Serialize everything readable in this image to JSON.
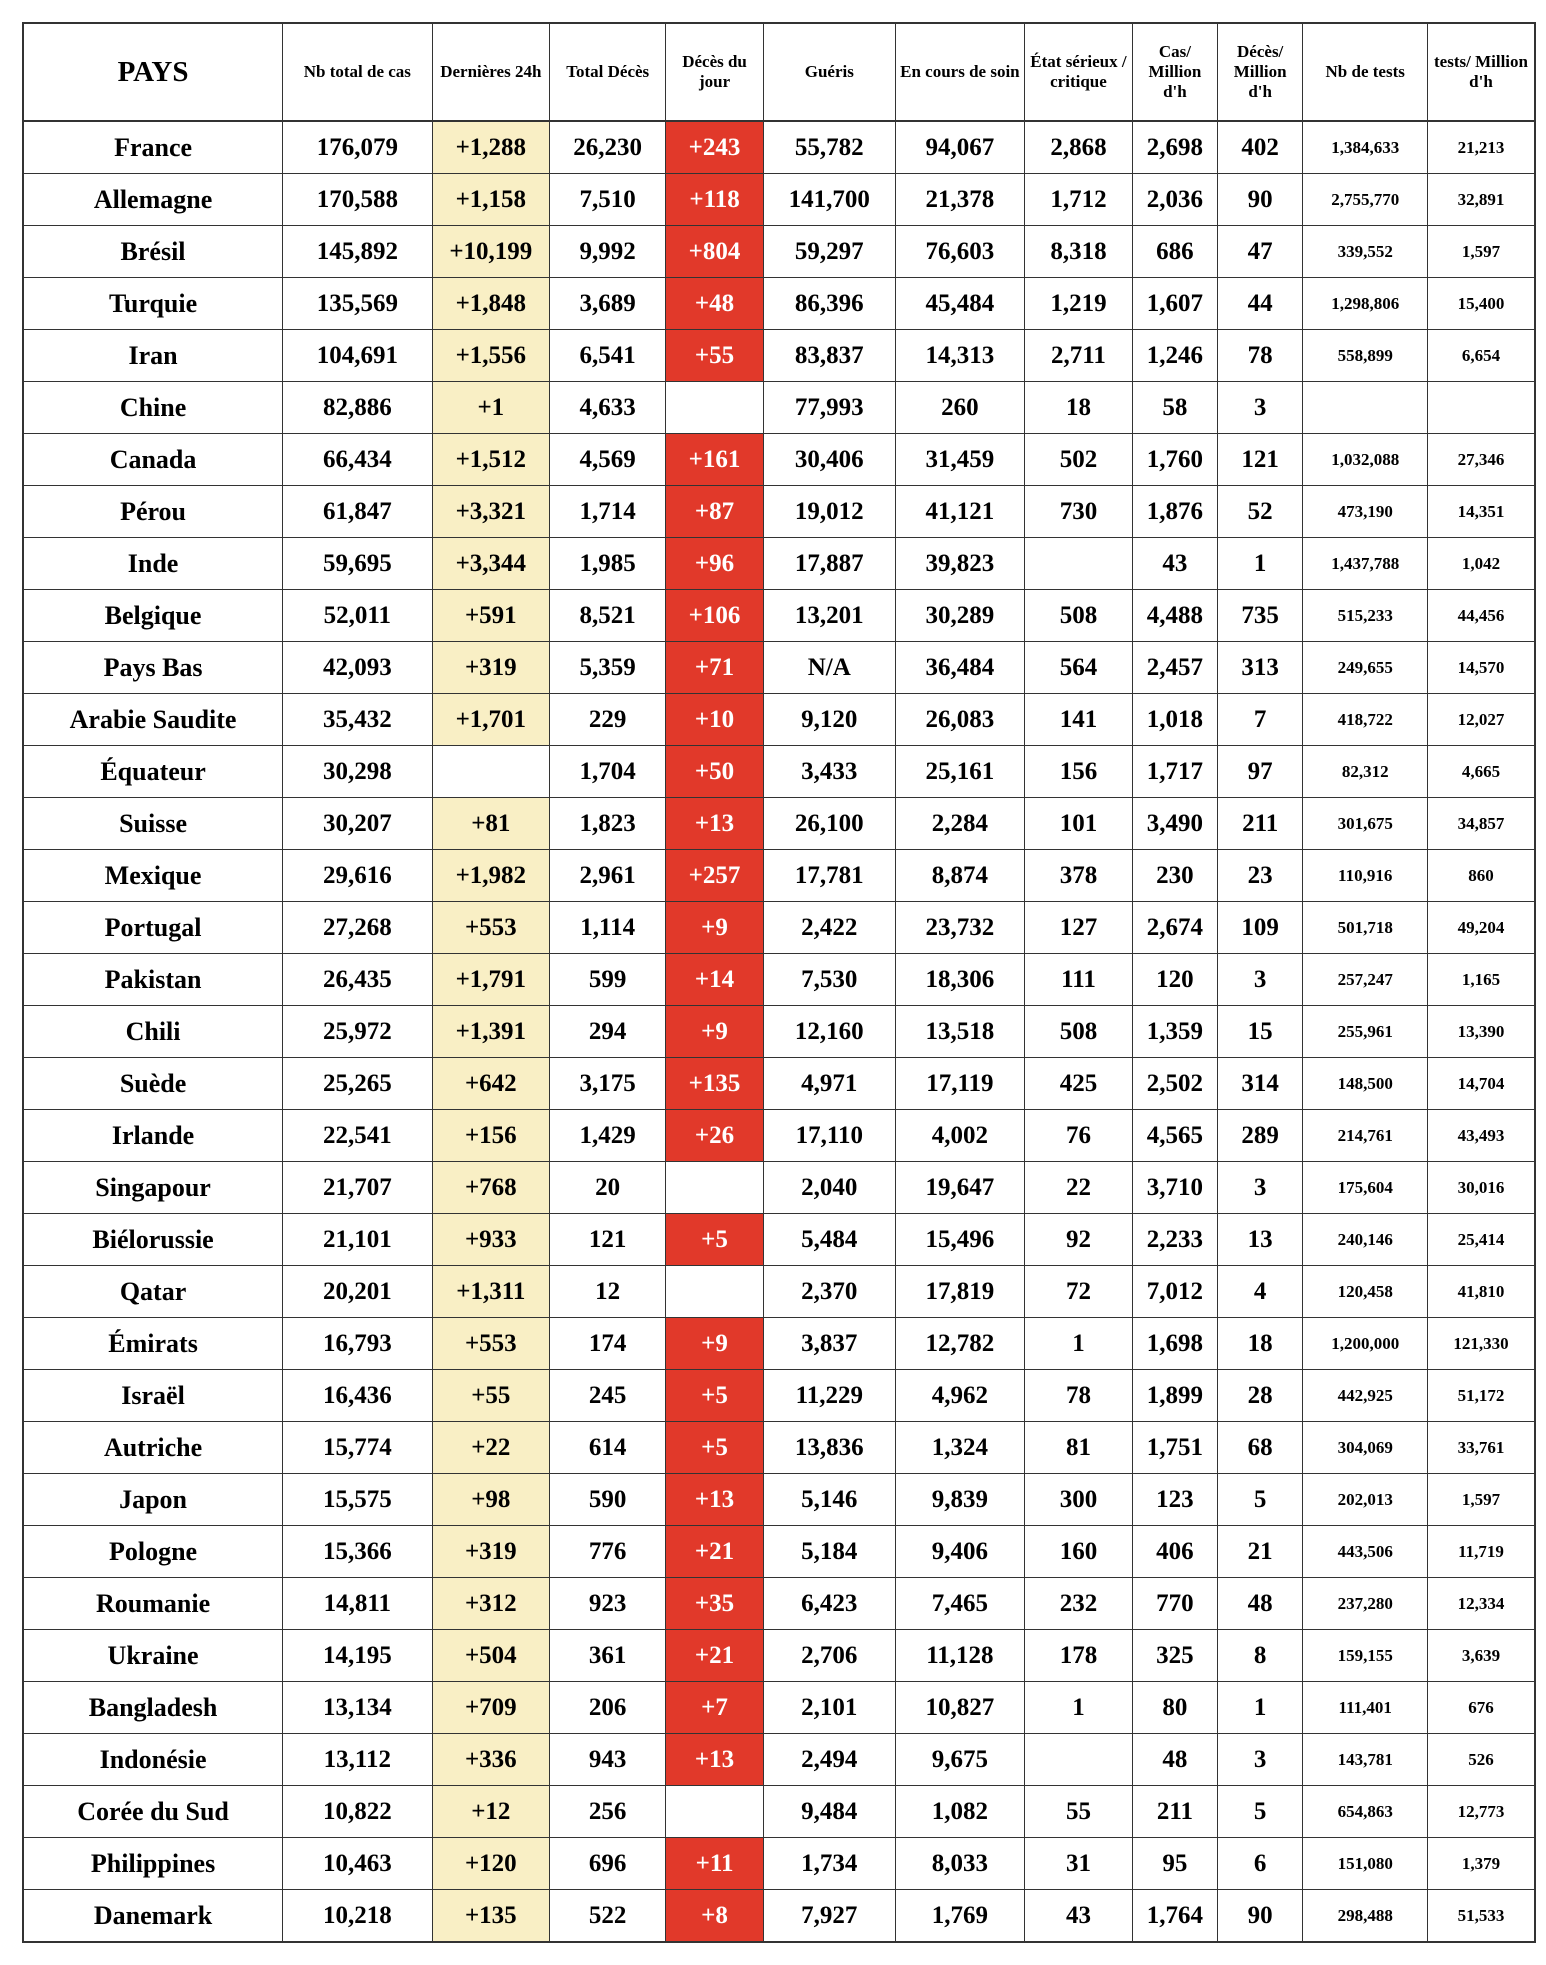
{
  "colors": {
    "daily_cases_bg": "#f9efc5",
    "daily_deaths_bg": "#e1392a",
    "daily_deaths_text": "#ffffff",
    "border": "#333333"
  },
  "chart_data": {
    "type": "table",
    "columns": [
      "PAYS",
      "Nb total de cas",
      "Dernières 24h",
      "Total Décès",
      "Décès du jour",
      "Guéris",
      "En cours de soin",
      "État sérieux / critique",
      "Cas/ Million d'h",
      "Décès/ Million d'h",
      "Nb de tests",
      "tests/ Million d'h"
    ],
    "rows": [
      [
        "France",
        "176,079",
        "+1,288",
        "26,230",
        "+243",
        "55,782",
        "94,067",
        "2,868",
        "2,698",
        "402",
        "1,384,633",
        "21,213"
      ],
      [
        "Allemagne",
        "170,588",
        "+1,158",
        "7,510",
        "+118",
        "141,700",
        "21,378",
        "1,712",
        "2,036",
        "90",
        "2,755,770",
        "32,891"
      ],
      [
        "Brésil",
        "145,892",
        "+10,199",
        "9,992",
        "+804",
        "59,297",
        "76,603",
        "8,318",
        "686",
        "47",
        "339,552",
        "1,597"
      ],
      [
        "Turquie",
        "135,569",
        "+1,848",
        "3,689",
        "+48",
        "86,396",
        "45,484",
        "1,219",
        "1,607",
        "44",
        "1,298,806",
        "15,400"
      ],
      [
        "Iran",
        "104,691",
        "+1,556",
        "6,541",
        "+55",
        "83,837",
        "14,313",
        "2,711",
        "1,246",
        "78",
        "558,899",
        "6,654"
      ],
      [
        "Chine",
        "82,886",
        "+1",
        "4,633",
        "",
        "77,993",
        "260",
        "18",
        "58",
        "3",
        "",
        ""
      ],
      [
        "Canada",
        "66,434",
        "+1,512",
        "4,569",
        "+161",
        "30,406",
        "31,459",
        "502",
        "1,760",
        "121",
        "1,032,088",
        "27,346"
      ],
      [
        "Pérou",
        "61,847",
        "+3,321",
        "1,714",
        "+87",
        "19,012",
        "41,121",
        "730",
        "1,876",
        "52",
        "473,190",
        "14,351"
      ],
      [
        "Inde",
        "59,695",
        "+3,344",
        "1,985",
        "+96",
        "17,887",
        "39,823",
        "",
        "43",
        "1",
        "1,437,788",
        "1,042"
      ],
      [
        "Belgique",
        "52,011",
        "+591",
        "8,521",
        "+106",
        "13,201",
        "30,289",
        "508",
        "4,488",
        "735",
        "515,233",
        "44,456"
      ],
      [
        "Pays Bas",
        "42,093",
        "+319",
        "5,359",
        "+71",
        "N/A",
        "36,484",
        "564",
        "2,457",
        "313",
        "249,655",
        "14,570"
      ],
      [
        "Arabie Saudite",
        "35,432",
        "+1,701",
        "229",
        "+10",
        "9,120",
        "26,083",
        "141",
        "1,018",
        "7",
        "418,722",
        "12,027"
      ],
      [
        "Équateur",
        "30,298",
        "",
        "1,704",
        "+50",
        "3,433",
        "25,161",
        "156",
        "1,717",
        "97",
        "82,312",
        "4,665"
      ],
      [
        "Suisse",
        "30,207",
        "+81",
        "1,823",
        "+13",
        "26,100",
        "2,284",
        "101",
        "3,490",
        "211",
        "301,675",
        "34,857"
      ],
      [
        "Mexique",
        "29,616",
        "+1,982",
        "2,961",
        "+257",
        "17,781",
        "8,874",
        "378",
        "230",
        "23",
        "110,916",
        "860"
      ],
      [
        "Portugal",
        "27,268",
        "+553",
        "1,114",
        "+9",
        "2,422",
        "23,732",
        "127",
        "2,674",
        "109",
        "501,718",
        "49,204"
      ],
      [
        "Pakistan",
        "26,435",
        "+1,791",
        "599",
        "+14",
        "7,530",
        "18,306",
        "111",
        "120",
        "3",
        "257,247",
        "1,165"
      ],
      [
        "Chili",
        "25,972",
        "+1,391",
        "294",
        "+9",
        "12,160",
        "13,518",
        "508",
        "1,359",
        "15",
        "255,961",
        "13,390"
      ],
      [
        "Suède",
        "25,265",
        "+642",
        "3,175",
        "+135",
        "4,971",
        "17,119",
        "425",
        "2,502",
        "314",
        "148,500",
        "14,704"
      ],
      [
        "Irlande",
        "22,541",
        "+156",
        "1,429",
        "+26",
        "17,110",
        "4,002",
        "76",
        "4,565",
        "289",
        "214,761",
        "43,493"
      ],
      [
        "Singapour",
        "21,707",
        "+768",
        "20",
        "",
        "2,040",
        "19,647",
        "22",
        "3,710",
        "3",
        "175,604",
        "30,016"
      ],
      [
        "Biélorussie",
        "21,101",
        "+933",
        "121",
        "+5",
        "5,484",
        "15,496",
        "92",
        "2,233",
        "13",
        "240,146",
        "25,414"
      ],
      [
        "Qatar",
        "20,201",
        "+1,311",
        "12",
        "",
        "2,370",
        "17,819",
        "72",
        "7,012",
        "4",
        "120,458",
        "41,810"
      ],
      [
        "Émirats",
        "16,793",
        "+553",
        "174",
        "+9",
        "3,837",
        "12,782",
        "1",
        "1,698",
        "18",
        "1,200,000",
        "121,330"
      ],
      [
        "Israël",
        "16,436",
        "+55",
        "245",
        "+5",
        "11,229",
        "4,962",
        "78",
        "1,899",
        "28",
        "442,925",
        "51,172"
      ],
      [
        "Autriche",
        "15,774",
        "+22",
        "614",
        "+5",
        "13,836",
        "1,324",
        "81",
        "1,751",
        "68",
        "304,069",
        "33,761"
      ],
      [
        "Japon",
        "15,575",
        "+98",
        "590",
        "+13",
        "5,146",
        "9,839",
        "300",
        "123",
        "5",
        "202,013",
        "1,597"
      ],
      [
        "Pologne",
        "15,366",
        "+319",
        "776",
        "+21",
        "5,184",
        "9,406",
        "160",
        "406",
        "21",
        "443,506",
        "11,719"
      ],
      [
        "Roumanie",
        "14,811",
        "+312",
        "923",
        "+35",
        "6,423",
        "7,465",
        "232",
        "770",
        "48",
        "237,280",
        "12,334"
      ],
      [
        "Ukraine",
        "14,195",
        "+504",
        "361",
        "+21",
        "2,706",
        "11,128",
        "178",
        "325",
        "8",
        "159,155",
        "3,639"
      ],
      [
        "Bangladesh",
        "13,134",
        "+709",
        "206",
        "+7",
        "2,101",
        "10,827",
        "1",
        "80",
        "1",
        "111,401",
        "676"
      ],
      [
        "Indonésie",
        "13,112",
        "+336",
        "943",
        "+13",
        "2,494",
        "9,675",
        "",
        "48",
        "3",
        "143,781",
        "526"
      ],
      [
        "Corée du Sud",
        "10,822",
        "+12",
        "256",
        "",
        "9,484",
        "1,082",
        "55",
        "211",
        "5",
        "654,863",
        "12,773"
      ],
      [
        "Philippines",
        "10,463",
        "+120",
        "696",
        "+11",
        "1,734",
        "8,033",
        "31",
        "95",
        "6",
        "151,080",
        "1,379"
      ],
      [
        "Danemark",
        "10,218",
        "+135",
        "522",
        "+8",
        "7,927",
        "1,769",
        "43",
        "1,764",
        "90",
        "298,488",
        "51,533"
      ]
    ]
  }
}
